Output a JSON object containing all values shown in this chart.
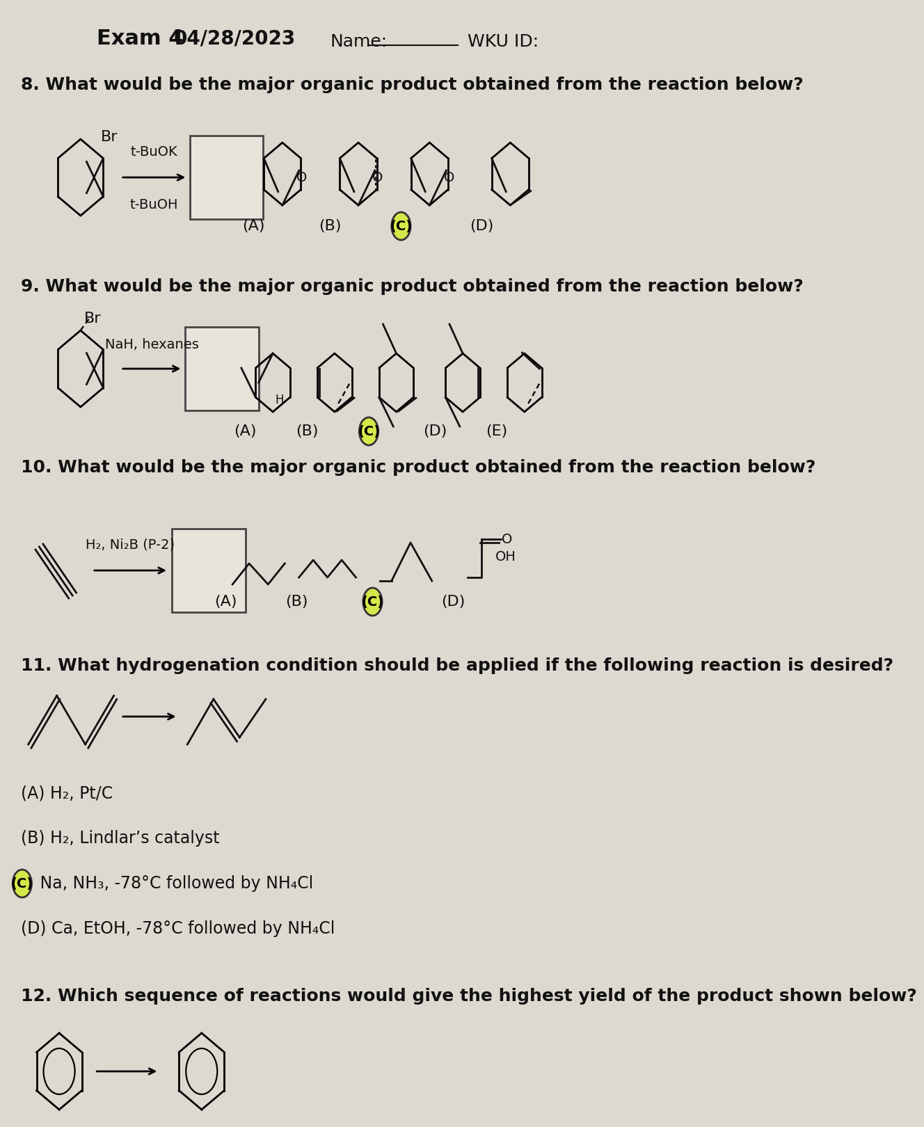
{
  "title": "Exam 4",
  "date": "04/28/2023",
  "name_label": "Name:",
  "wku_label": "WKU ID:",
  "bg_color": "#ddd9d0",
  "text_color": "#111111",
  "q8_text": "8. What would be the major organic product obtained from the reaction below?",
  "q9_text": "9. What would be the major organic product obtained from the reaction below?",
  "q10_text": "10. What would be the major organic product obtained from the reaction below?",
  "q11_text": "11. What hydrogenation condition should be applied if the following reaction is desired?",
  "q12_text": "12. Which sequence of reactions would give the highest yield of the product shown below?",
  "q8_reagent_top": "t-BuOK",
  "q8_reagent_bot": "t-BuOH",
  "q9_reagent": "NaH, hexanes",
  "q10_reagent": "H₂, Ni₂B (P-2)",
  "q11_options": [
    "(A) H₂, Pt/C",
    "(B) H₂, Lindlar’s catalyst",
    "(C) Na, NH₃, -78°C followed by NH₄Cl",
    "(D) Ca, EtOH, -78°C followed by NH₄Cl"
  ],
  "answer_circle_color": "#d4e84a",
  "answer_circled_q8": "C",
  "answer_circled_q9": "C",
  "answer_circled_q10": "C",
  "answer_circled_q11": "C"
}
